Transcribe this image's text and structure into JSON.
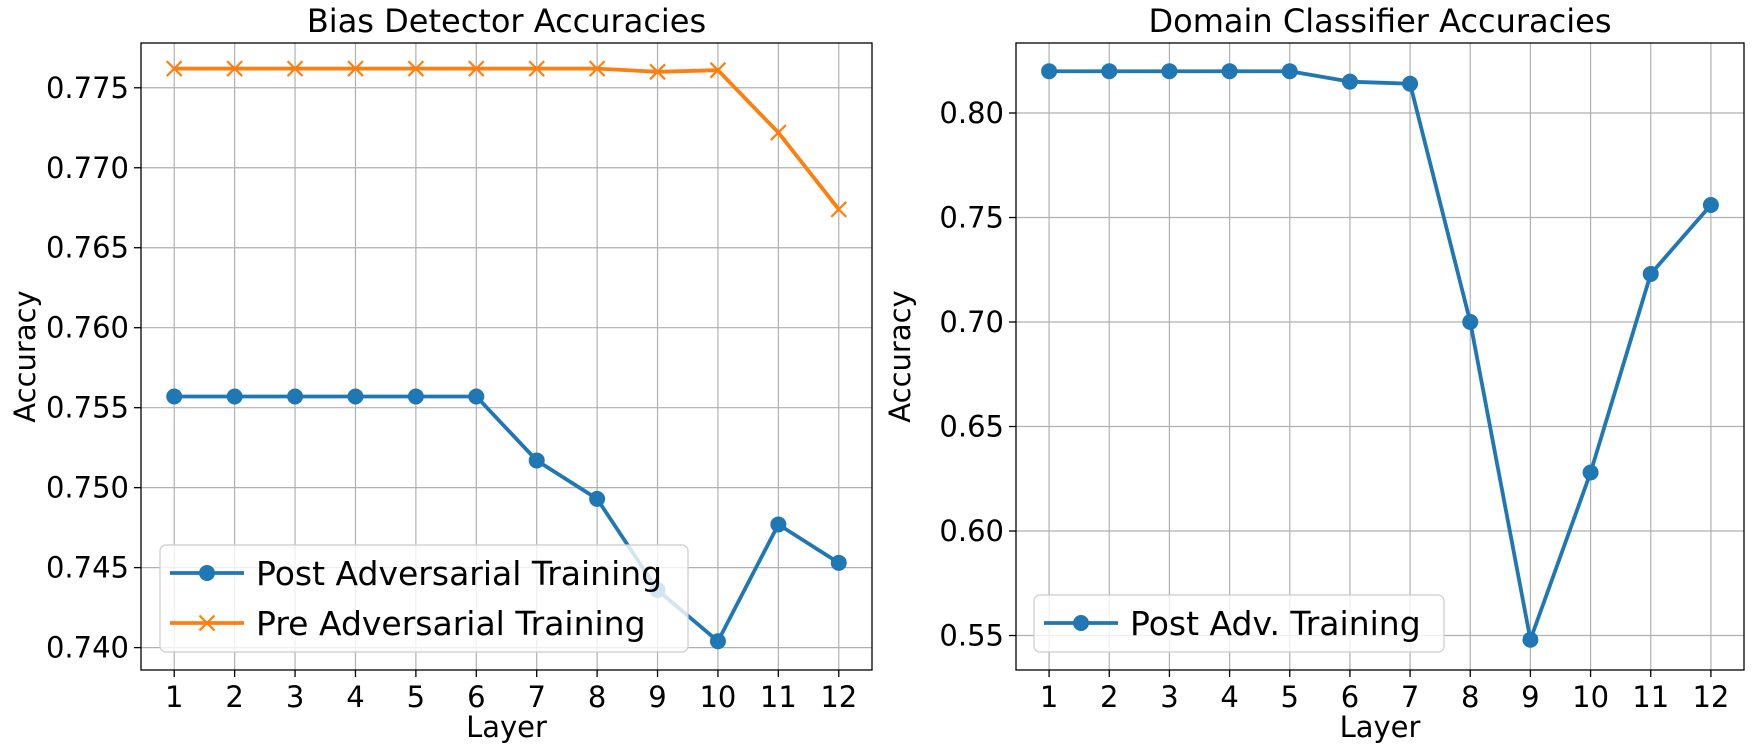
{
  "chart_data": [
    {
      "type": "line",
      "title": "Bias Detector Accuracies",
      "xlabel": "Layer",
      "ylabel": "Accuracy",
      "x": [
        1,
        2,
        3,
        4,
        5,
        6,
        7,
        8,
        9,
        10,
        11,
        12
      ],
      "xlim": [
        0.45,
        12.55
      ],
      "ylim": [
        0.7386,
        0.7778
      ],
      "yticks": [
        0.74,
        0.745,
        0.75,
        0.755,
        0.76,
        0.765,
        0.77,
        0.775
      ],
      "ytick_labels": [
        "0.740",
        "0.745",
        "0.750",
        "0.755",
        "0.760",
        "0.765",
        "0.770",
        "0.775"
      ],
      "grid": true,
      "legend_position": "lower-left",
      "series": [
        {
          "name": "Post Adversarial Training",
          "color": "#1f77b4",
          "marker": "circle",
          "values": [
            0.7557,
            0.7557,
            0.7557,
            0.7557,
            0.7557,
            0.7557,
            0.7517,
            0.7493,
            0.7436,
            0.7404,
            0.7477,
            0.7453
          ]
        },
        {
          "name": "Pre Adversarial Training",
          "color": "#ff7f0e",
          "marker": "x",
          "values": [
            0.7762,
            0.7762,
            0.7762,
            0.7762,
            0.7762,
            0.7762,
            0.7762,
            0.7762,
            0.776,
            0.7761,
            0.7722,
            0.7674
          ]
        }
      ]
    },
    {
      "type": "line",
      "title": "Domain Classifier Accuracies",
      "xlabel": "Layer",
      "ylabel": "Accuracy",
      "x": [
        1,
        2,
        3,
        4,
        5,
        6,
        7,
        8,
        9,
        10,
        11,
        12
      ],
      "xlim": [
        0.45,
        12.55
      ],
      "ylim": [
        0.5335,
        0.8335
      ],
      "yticks": [
        0.55,
        0.6,
        0.65,
        0.7,
        0.75,
        0.8
      ],
      "ytick_labels": [
        "0.55",
        "0.60",
        "0.65",
        "0.70",
        "0.75",
        "0.80"
      ],
      "grid": true,
      "legend_position": "lower-left",
      "series": [
        {
          "name": "Post Adv. Training",
          "color": "#1f77b4",
          "marker": "circle",
          "values": [
            0.82,
            0.82,
            0.82,
            0.82,
            0.82,
            0.815,
            0.814,
            0.7,
            0.548,
            0.628,
            0.723,
            0.756
          ]
        }
      ]
    }
  ]
}
